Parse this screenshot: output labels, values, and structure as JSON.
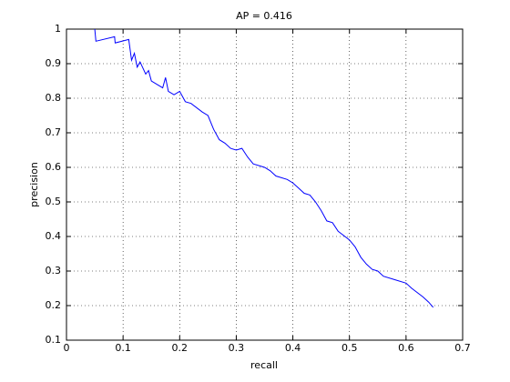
{
  "chart_data": {
    "type": "line",
    "title": "AP = 0.416",
    "x_label": "recall",
    "y_label": "precision",
    "x": [
      0.05,
      0.052,
      0.085,
      0.086,
      0.11,
      0.115,
      0.12,
      0.125,
      0.13,
      0.14,
      0.145,
      0.15,
      0.16,
      0.17,
      0.175,
      0.18,
      0.19,
      0.2,
      0.21,
      0.22,
      0.24,
      0.25,
      0.26,
      0.27,
      0.28,
      0.29,
      0.3,
      0.31,
      0.32,
      0.33,
      0.35,
      0.36,
      0.37,
      0.39,
      0.4,
      0.41,
      0.42,
      0.43,
      0.44,
      0.45,
      0.46,
      0.47,
      0.48,
      0.5,
      0.51,
      0.52,
      0.53,
      0.54,
      0.55,
      0.56,
      0.58,
      0.6,
      0.61,
      0.63,
      0.64,
      0.648
    ],
    "series": [
      {
        "color": "#0000ff",
        "values": [
          1.0,
          0.965,
          0.978,
          0.96,
          0.97,
          0.91,
          0.93,
          0.89,
          0.905,
          0.87,
          0.88,
          0.85,
          0.84,
          0.83,
          0.86,
          0.82,
          0.81,
          0.82,
          0.79,
          0.785,
          0.76,
          0.75,
          0.71,
          0.68,
          0.67,
          0.655,
          0.65,
          0.655,
          0.63,
          0.61,
          0.6,
          0.59,
          0.575,
          0.565,
          0.555,
          0.54,
          0.525,
          0.52,
          0.5,
          0.475,
          0.445,
          0.44,
          0.415,
          0.39,
          0.37,
          0.34,
          0.32,
          0.305,
          0.3,
          0.285,
          0.275,
          0.265,
          0.25,
          0.225,
          0.21,
          0.195
        ]
      }
    ],
    "xlim": [
      0,
      0.7
    ],
    "ylim": [
      0.1,
      1
    ],
    "xticks": [
      0,
      0.1,
      0.2,
      0.3,
      0.4,
      0.5,
      0.6,
      0.7
    ],
    "yticks": [
      0.1,
      0.2,
      0.3,
      0.4,
      0.5,
      0.6,
      0.7,
      0.8,
      0.9,
      1
    ],
    "grid": true
  }
}
